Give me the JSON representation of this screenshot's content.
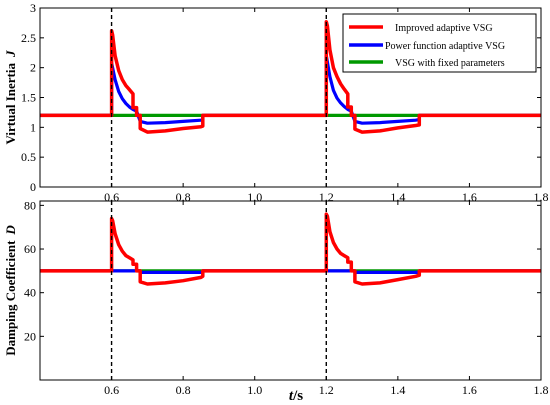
{
  "colors": {
    "improved": "#ff0000",
    "power": "#0000ff",
    "fixed": "#009900"
  },
  "xlabel": {
    "italic": "t",
    "rest": "/s"
  },
  "chart_data": [
    {
      "type": "line",
      "ylabel": {
        "text": "Virtual Inertia",
        "symbol": "J"
      },
      "xlim": [
        0.4,
        1.8
      ],
      "ylim": [
        0,
        3
      ],
      "xticks": [
        "0.6",
        "0.8",
        "1.0",
        "1.2",
        "1.4",
        "1.6",
        "1.8"
      ],
      "xtick_values": [
        0.6,
        0.8,
        1.0,
        1.2,
        1.4,
        1.6,
        1.8
      ],
      "yticks": [
        "0",
        "0.5",
        "1",
        "1.5",
        "2",
        "2.5",
        "3"
      ],
      "ytick_values": [
        0,
        0.5,
        1,
        1.5,
        2,
        2.5,
        3
      ],
      "vlines": [
        0.6,
        1.2
      ],
      "legend": {
        "position": "top-right",
        "entries": [
          "Improved adaptive VSG",
          "Power function adaptive VSG",
          "VSG with fixed parameters"
        ]
      },
      "series": [
        {
          "name": "Improved adaptive VSG",
          "color": "#ff0000",
          "x": [
            0.4,
            0.6,
            0.6,
            0.603,
            0.61,
            0.62,
            0.63,
            0.64,
            0.65,
            0.66,
            0.66,
            0.67,
            0.67,
            0.68,
            0.68,
            0.7,
            0.75,
            0.8,
            0.85,
            0.855,
            0.855,
            1.2,
            1.2,
            1.203,
            1.21,
            1.22,
            1.23,
            1.24,
            1.25,
            1.26,
            1.26,
            1.27,
            1.27,
            1.28,
            1.28,
            1.3,
            1.35,
            1.4,
            1.45,
            1.46,
            1.46,
            1.8
          ],
          "y": [
            1.2,
            1.2,
            2.62,
            2.55,
            2.2,
            1.95,
            1.8,
            1.7,
            1.63,
            1.56,
            1.33,
            1.33,
            1.2,
            1.2,
            0.98,
            0.92,
            0.94,
            0.98,
            1.01,
            1.02,
            1.2,
            1.2,
            2.77,
            2.7,
            2.3,
            2.0,
            1.85,
            1.73,
            1.64,
            1.56,
            1.34,
            1.34,
            1.2,
            1.2,
            0.97,
            0.92,
            0.94,
            0.99,
            1.03,
            1.04,
            1.2,
            1.2
          ]
        },
        {
          "name": "Power function adaptive VSG",
          "color": "#0000ff",
          "x": [
            0.4,
            0.6,
            0.6,
            0.61,
            0.62,
            0.63,
            0.64,
            0.65,
            0.66,
            0.67,
            0.68,
            0.7,
            0.75,
            0.8,
            0.85,
            0.855,
            0.855,
            1.2,
            1.2,
            1.21,
            1.22,
            1.23,
            1.24,
            1.25,
            1.26,
            1.27,
            1.28,
            1.3,
            1.35,
            1.4,
            1.45,
            1.46,
            1.46,
            1.8
          ],
          "y": [
            1.2,
            1.2,
            2.08,
            1.8,
            1.6,
            1.48,
            1.4,
            1.34,
            1.3,
            1.27,
            1.1,
            1.07,
            1.08,
            1.1,
            1.12,
            1.12,
            1.2,
            1.2,
            2.2,
            1.85,
            1.62,
            1.49,
            1.41,
            1.35,
            1.3,
            1.27,
            1.1,
            1.07,
            1.08,
            1.1,
            1.12,
            1.13,
            1.2,
            1.2
          ]
        },
        {
          "name": "VSG with fixed parameters",
          "color": "#009900",
          "x": [
            0.4,
            1.8
          ],
          "y": [
            1.2,
            1.2
          ]
        }
      ]
    },
    {
      "type": "line",
      "ylabel": {
        "text": "Damping Coefficient",
        "symbol": "D"
      },
      "xlim": [
        0.4,
        1.8
      ],
      "ylim": [
        0,
        82
      ],
      "xticks": [
        "0.6",
        "0.8",
        "1.0",
        "1.2",
        "1.4",
        "1.6",
        "1.8"
      ],
      "xtick_values": [
        0.6,
        0.8,
        1.0,
        1.2,
        1.4,
        1.6,
        1.8
      ],
      "yticks": [
        "20",
        "40",
        "60",
        "80"
      ],
      "ytick_values": [
        20,
        40,
        60,
        80
      ],
      "vlines": [
        0.6,
        1.2
      ],
      "series": [
        {
          "name": "Improved adaptive VSG",
          "color": "#ff0000",
          "x": [
            0.4,
            0.6,
            0.6,
            0.603,
            0.61,
            0.62,
            0.63,
            0.64,
            0.65,
            0.66,
            0.66,
            0.67,
            0.67,
            0.68,
            0.68,
            0.7,
            0.75,
            0.8,
            0.85,
            0.855,
            0.855,
            1.2,
            1.2,
            1.203,
            1.21,
            1.22,
            1.23,
            1.24,
            1.25,
            1.26,
            1.26,
            1.27,
            1.27,
            1.28,
            1.28,
            1.3,
            1.35,
            1.4,
            1.45,
            1.46,
            1.46,
            1.8
          ],
          "y": [
            50,
            50,
            74,
            73,
            67,
            62,
            59,
            57,
            56,
            55,
            53,
            53,
            50,
            50,
            45,
            44,
            44.5,
            45.5,
            47,
            47.5,
            50,
            50,
            76,
            75,
            68,
            63,
            60,
            58,
            57,
            56,
            54,
            54,
            50,
            50,
            45,
            44,
            44.5,
            46,
            47.5,
            48,
            50,
            50
          ]
        },
        {
          "name": "Power function adaptive VSG",
          "color": "#0000ff",
          "x": [
            0.4,
            0.6,
            0.6,
            0.68,
            0.68,
            0.855,
            0.855,
            1.2,
            1.2,
            1.28,
            1.28,
            1.46,
            1.46,
            1.8
          ],
          "y": [
            50,
            50,
            50,
            50,
            49.3,
            49.3,
            50,
            50,
            50,
            50,
            49.3,
            49.3,
            50,
            50
          ]
        },
        {
          "name": "VSG with fixed parameters",
          "color": "#009900",
          "x": [
            0.4,
            1.8
          ],
          "y": [
            50,
            50
          ]
        }
      ]
    }
  ]
}
